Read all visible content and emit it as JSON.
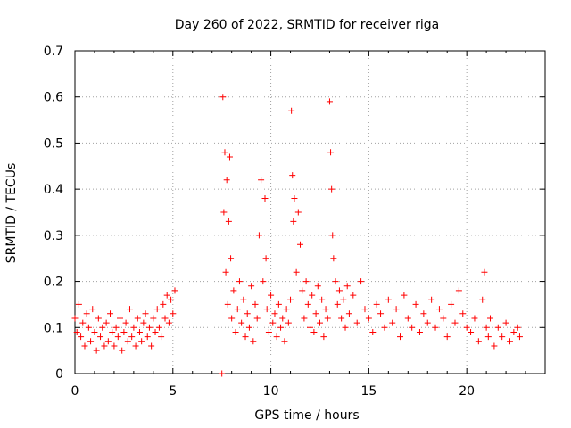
{
  "chart_data": {
    "type": "scatter",
    "title": "Day 260 of 2022, SRMTID for receiver riga",
    "xlabel": "GPS time / hours",
    "ylabel": "SRMTID / TECUs",
    "xlim": [
      0,
      24
    ],
    "ylim": [
      0,
      0.7
    ],
    "xticks": [
      0,
      5,
      10,
      15,
      20
    ],
    "yticks": [
      0,
      0.1,
      0.2,
      0.3,
      0.4,
      0.5,
      0.6,
      0.7
    ],
    "xtick_labels": [
      "0",
      "5",
      "10",
      "15",
      "20"
    ],
    "ytick_labels": [
      "0",
      "0.1",
      "0.2",
      "0.3",
      "0.4",
      "0.5",
      "0.6",
      "0.7"
    ],
    "grid": true,
    "marker": "+",
    "color": "#ff0000",
    "series": [
      {
        "name": "SRMTID",
        "x": [
          0.0,
          0.1,
          0.2,
          0.3,
          0.4,
          0.5,
          0.6,
          0.7,
          0.8,
          0.9,
          1.0,
          1.1,
          1.2,
          1.3,
          1.4,
          1.5,
          1.6,
          1.7,
          1.8,
          1.9,
          2.0,
          2.1,
          2.2,
          2.3,
          2.4,
          2.5,
          2.6,
          2.7,
          2.8,
          2.9,
          3.0,
          3.1,
          3.2,
          3.3,
          3.4,
          3.5,
          3.6,
          3.7,
          3.8,
          3.9,
          4.0,
          4.1,
          4.2,
          4.3,
          4.4,
          4.5,
          4.6,
          4.7,
          4.8,
          4.9,
          5.0,
          5.1,
          7.5,
          7.55,
          7.6,
          7.65,
          7.7,
          7.75,
          7.8,
          7.85,
          7.9,
          7.95,
          8.0,
          8.1,
          8.2,
          8.3,
          8.4,
          8.5,
          8.6,
          8.7,
          8.8,
          8.9,
          9.0,
          9.1,
          9.2,
          9.3,
          9.4,
          9.5,
          9.6,
          9.7,
          9.75,
          9.8,
          9.9,
          10.0,
          10.1,
          10.2,
          10.3,
          10.4,
          10.5,
          10.6,
          10.7,
          10.8,
          10.9,
          11.0,
          11.05,
          11.1,
          11.15,
          11.2,
          11.3,
          11.4,
          11.5,
          11.6,
          11.7,
          11.8,
          11.9,
          12.0,
          12.1,
          12.2,
          12.3,
          12.4,
          12.5,
          12.6,
          12.7,
          12.8,
          12.9,
          13.0,
          13.05,
          13.1,
          13.15,
          13.2,
          13.3,
          13.4,
          13.5,
          13.6,
          13.7,
          13.8,
          13.9,
          14.0,
          14.2,
          14.4,
          14.6,
          14.8,
          15.0,
          15.2,
          15.4,
          15.6,
          15.8,
          16.0,
          16.2,
          16.4,
          16.6,
          16.8,
          17.0,
          17.2,
          17.4,
          17.6,
          17.8,
          18.0,
          18.2,
          18.4,
          18.6,
          18.8,
          19.0,
          19.2,
          19.4,
          19.6,
          19.8,
          20.0,
          20.2,
          20.4,
          20.6,
          20.8,
          20.9,
          21.0,
          21.1,
          21.2,
          21.4,
          21.6,
          21.8,
          22.0,
          22.2,
          22.4,
          22.6,
          22.7
        ],
        "y": [
          0.12,
          0.09,
          0.15,
          0.08,
          0.11,
          0.06,
          0.13,
          0.1,
          0.07,
          0.14,
          0.09,
          0.05,
          0.12,
          0.08,
          0.1,
          0.06,
          0.11,
          0.07,
          0.13,
          0.09,
          0.06,
          0.1,
          0.08,
          0.12,
          0.05,
          0.09,
          0.11,
          0.07,
          0.14,
          0.08,
          0.1,
          0.06,
          0.12,
          0.09,
          0.07,
          0.11,
          0.13,
          0.08,
          0.1,
          0.06,
          0.12,
          0.09,
          0.14,
          0.1,
          0.08,
          0.15,
          0.12,
          0.17,
          0.11,
          0.16,
          0.13,
          0.18,
          0.0,
          0.6,
          0.35,
          0.48,
          0.22,
          0.42,
          0.15,
          0.33,
          0.47,
          0.25,
          0.12,
          0.18,
          0.09,
          0.14,
          0.2,
          0.11,
          0.16,
          0.08,
          0.13,
          0.1,
          0.19,
          0.07,
          0.15,
          0.12,
          0.3,
          0.42,
          0.2,
          0.38,
          0.25,
          0.14,
          0.09,
          0.17,
          0.11,
          0.13,
          0.08,
          0.15,
          0.1,
          0.12,
          0.07,
          0.14,
          0.11,
          0.16,
          0.57,
          0.43,
          0.33,
          0.38,
          0.22,
          0.35,
          0.28,
          0.18,
          0.12,
          0.2,
          0.15,
          0.1,
          0.17,
          0.09,
          0.13,
          0.19,
          0.11,
          0.16,
          0.08,
          0.14,
          0.12,
          0.59,
          0.48,
          0.4,
          0.3,
          0.25,
          0.2,
          0.15,
          0.18,
          0.12,
          0.16,
          0.1,
          0.19,
          0.13,
          0.17,
          0.11,
          0.2,
          0.14,
          0.12,
          0.09,
          0.15,
          0.13,
          0.1,
          0.16,
          0.11,
          0.14,
          0.08,
          0.17,
          0.12,
          0.1,
          0.15,
          0.09,
          0.13,
          0.11,
          0.16,
          0.1,
          0.14,
          0.12,
          0.08,
          0.15,
          0.11,
          0.18,
          0.13,
          0.1,
          0.09,
          0.12,
          0.07,
          0.16,
          0.22,
          0.1,
          0.08,
          0.12,
          0.06,
          0.1,
          0.08,
          0.11,
          0.07,
          0.09,
          0.1,
          0.08
        ]
      }
    ]
  }
}
